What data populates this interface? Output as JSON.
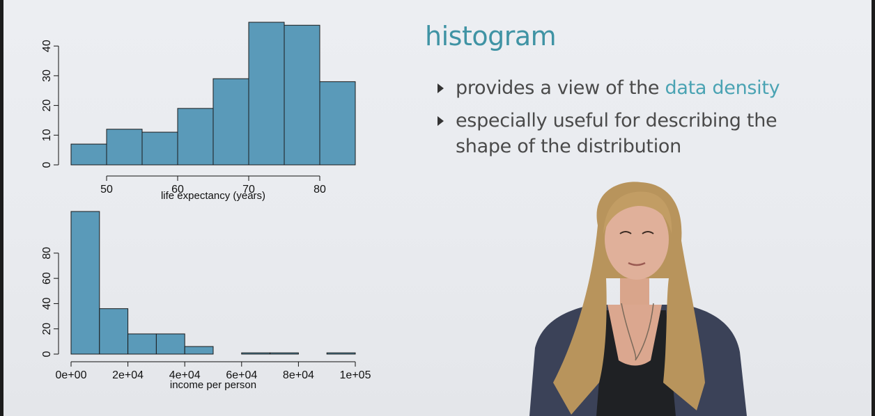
{
  "slide": {
    "title": "histogram",
    "bullets": [
      {
        "text": "provides a view of the ",
        "highlight": "data density"
      },
      {
        "text": "especially useful for describing the shape of the distribution"
      }
    ],
    "accent_color": "#4aa3b3",
    "title_color": "#3f93a4"
  },
  "chart_data": [
    {
      "type": "bar",
      "subtype": "histogram",
      "xlabel": "life expectancy (years)",
      "ylabel": "",
      "bins": [
        [
          45,
          50
        ],
        [
          50,
          55
        ],
        [
          55,
          60
        ],
        [
          60,
          65
        ],
        [
          65,
          70
        ],
        [
          70,
          75
        ],
        [
          75,
          80
        ],
        [
          80,
          85
        ]
      ],
      "values": [
        7,
        12,
        11,
        19,
        29,
        48,
        47,
        28
      ],
      "xlim": [
        45,
        85
      ],
      "ylim": [
        0,
        48
      ],
      "xticks": [
        50,
        60,
        70,
        80
      ],
      "xtick_labels": [
        "50",
        "60",
        "70",
        "80"
      ],
      "yticks": [
        0,
        10,
        20,
        30,
        40
      ],
      "ytick_labels": [
        "0",
        "10",
        "20",
        "30",
        "40"
      ],
      "bar_color": "#5a9ab9",
      "grid": false
    },
    {
      "type": "bar",
      "subtype": "histogram",
      "xlabel": "income per person",
      "ylabel": "",
      "bins": [
        [
          0,
          10000
        ],
        [
          10000,
          20000
        ],
        [
          20000,
          30000
        ],
        [
          30000,
          40000
        ],
        [
          40000,
          50000
        ],
        [
          50000,
          60000
        ],
        [
          60000,
          70000
        ],
        [
          70000,
          80000
        ],
        [
          80000,
          90000
        ],
        [
          90000,
          100000
        ]
      ],
      "values": [
        113,
        36,
        16,
        16,
        6,
        0,
        1,
        1,
        0,
        1
      ],
      "xlim": [
        0,
        100000
      ],
      "ylim": [
        0,
        113
      ],
      "xticks": [
        0,
        20000,
        40000,
        60000,
        80000,
        100000
      ],
      "xtick_labels": [
        "0e+00",
        "2e+04",
        "4e+04",
        "6e+04",
        "8e+04",
        "1e+05"
      ],
      "yticks": [
        0,
        20,
        40,
        60,
        80
      ],
      "ytick_labels": [
        "0",
        "20",
        "40",
        "60",
        "80"
      ],
      "bar_color": "#5a9ab9",
      "grid": false
    }
  ]
}
